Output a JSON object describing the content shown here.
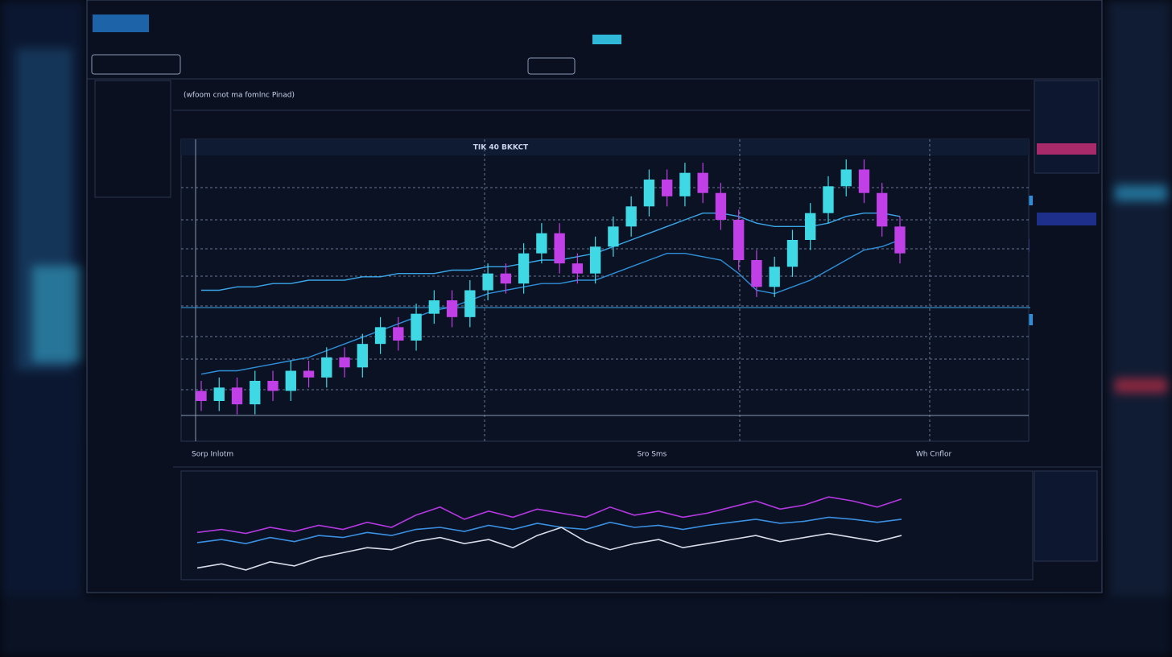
{
  "header": {
    "chart_heading": "(wfoom cnot ma fomlnc Pinad)",
    "ticker": "TIK 40 BKKCT",
    "section_left": "Sorp Inlotm",
    "section_mid": "Sro Sms",
    "section_right": "Wh Cnflor"
  },
  "chart_data": [
    {
      "type": "candlestick",
      "ylim": [
        10,
        100
      ],
      "up_color": "#3fd9e6",
      "down_color": "#c13fe6",
      "open": [
        25,
        22,
        26,
        21,
        28,
        25,
        31,
        29,
        35,
        32,
        39,
        44,
        40,
        48,
        52,
        47,
        55,
        60,
        57,
        66,
        72,
        63,
        60,
        68,
        74,
        80,
        88,
        83,
        90,
        84,
        76,
        64,
        56,
        62,
        70,
        78,
        86,
        91,
        84,
        74
      ],
      "high": [
        28,
        29,
        29,
        31,
        31,
        34,
        34,
        38,
        38,
        42,
        47,
        47,
        51,
        55,
        55,
        58,
        63,
        63,
        69,
        75,
        75,
        66,
        71,
        77,
        83,
        91,
        91,
        93,
        93,
        87,
        79,
        67,
        65,
        73,
        81,
        89,
        94,
        94,
        87,
        77
      ],
      "low": [
        19,
        19,
        18,
        18,
        22,
        22,
        26,
        26,
        29,
        29,
        36,
        37,
        37,
        45,
        44,
        44,
        52,
        54,
        54,
        63,
        60,
        57,
        57,
        65,
        71,
        77,
        80,
        80,
        81,
        73,
        61,
        53,
        53,
        59,
        67,
        75,
        83,
        81,
        71,
        63
      ],
      "close": [
        22,
        26,
        21,
        28,
        25,
        31,
        29,
        35,
        32,
        39,
        44,
        40,
        48,
        52,
        47,
        55,
        60,
        57,
        66,
        72,
        63,
        60,
        68,
        74,
        80,
        88,
        83,
        90,
        84,
        76,
        64,
        56,
        62,
        70,
        78,
        86,
        91,
        84,
        74,
        66
      ],
      "lines": [
        {
          "color": "#3aa6e8",
          "values": [
            55,
            55,
            56,
            56,
            57,
            57,
            58,
            58,
            58,
            59,
            59,
            60,
            60,
            60,
            61,
            61,
            62,
            62,
            63,
            64,
            64,
            65,
            66,
            68,
            70,
            72,
            74,
            76,
            78,
            78,
            77,
            75,
            74,
            74,
            74,
            75,
            77,
            78,
            78,
            77
          ]
        },
        {
          "color": "#2f8fd8",
          "values": [
            30,
            31,
            31,
            32,
            33,
            34,
            35,
            37,
            39,
            41,
            43,
            45,
            47,
            49,
            50,
            52,
            54,
            55,
            56,
            57,
            57,
            58,
            58,
            60,
            62,
            64,
            66,
            66,
            65,
            64,
            60,
            55,
            54,
            56,
            58,
            61,
            64,
            67,
            68,
            70
          ]
        }
      ]
    },
    {
      "type": "line",
      "ylim": [
        0,
        100
      ],
      "series": [
        {
          "color": "#b438e0",
          "values": [
            45,
            48,
            44,
            50,
            46,
            52,
            48,
            55,
            50,
            62,
            70,
            58,
            66,
            60,
            68,
            64,
            60,
            70,
            62,
            66,
            60,
            64,
            70,
            76,
            68,
            72,
            80,
            76,
            70,
            78
          ]
        },
        {
          "color": "#3a8fe0",
          "values": [
            35,
            38,
            34,
            40,
            36,
            42,
            40,
            45,
            42,
            48,
            50,
            46,
            52,
            48,
            54,
            50,
            48,
            55,
            50,
            52,
            48,
            52,
            55,
            58,
            54,
            56,
            60,
            58,
            55,
            58
          ]
        },
        {
          "color": "#d8dce8",
          "values": [
            10,
            14,
            8,
            16,
            12,
            20,
            25,
            30,
            28,
            36,
            40,
            34,
            38,
            30,
            42,
            50,
            36,
            28,
            34,
            38,
            30,
            34,
            38,
            42,
            36,
            40,
            44,
            40,
            36,
            42
          ]
        }
      ]
    }
  ]
}
